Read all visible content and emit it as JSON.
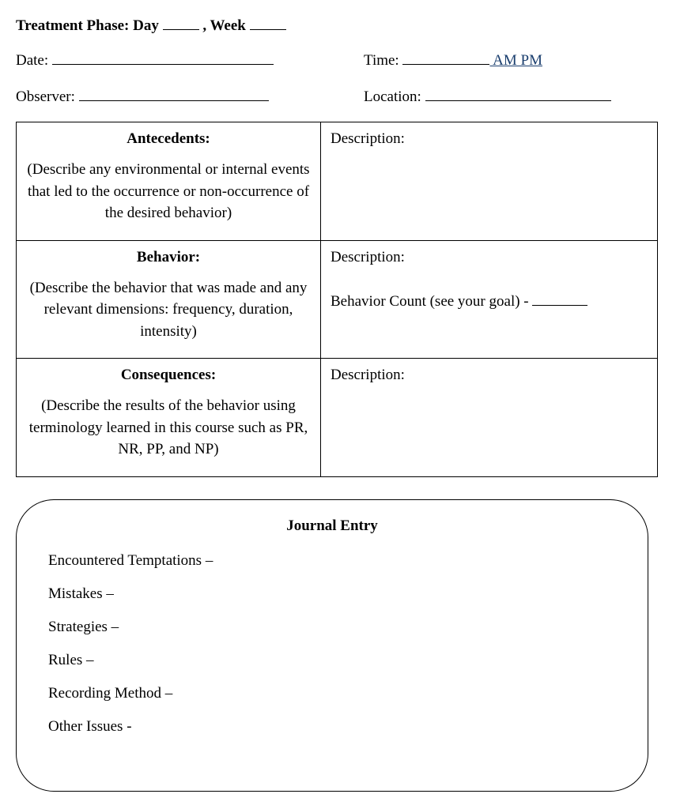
{
  "header": {
    "phase_prefix": "Treatment Phase: Day ",
    "phase_mid": " , Week ",
    "day_blank_width": 46,
    "week_blank_width": 46
  },
  "info": {
    "date_label": "Date: ",
    "date_blank_width": 280,
    "time_label": "Time: ",
    "time_blank_width": 110,
    "am_pm": " AM  PM",
    "observer_label": "Observer: ",
    "observer_blank_width": 240,
    "location_label": "Location: ",
    "location_blank_width": 235
  },
  "table": {
    "rows": [
      {
        "title": "Antecedents:",
        "desc": "(Describe any environmental or internal events that led to the occurrence or non-occurrence of the desired behavior)",
        "right_label": "Description:",
        "extra": null
      },
      {
        "title": "Behavior:",
        "desc": "(Describe the behavior that was made and any relevant dimensions: frequency, duration, intensity)",
        "right_label": "Description:",
        "extra": "Behavior Count (see your goal) - ",
        "extra_blank_width": 70
      },
      {
        "title": "Consequences:",
        "desc": "(Describe the results of the behavior using terminology learned in this course such as PR, NR, PP, and NP)",
        "right_label": "Description:",
        "extra": null
      }
    ]
  },
  "journal": {
    "title": "Journal Entry",
    "items": [
      "Encountered Temptations –",
      "Mistakes –",
      "Strategies –",
      "Rules –",
      "Recording Method –",
      "Other Issues -"
    ]
  }
}
